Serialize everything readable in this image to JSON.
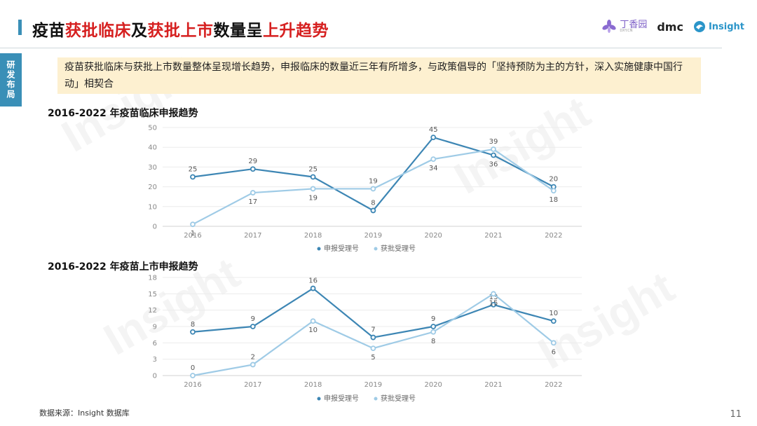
{
  "header": {
    "title_parts": [
      {
        "text": "疫苗",
        "highlight": false
      },
      {
        "text": "获批临床",
        "highlight": true
      },
      {
        "text": "及",
        "highlight": false
      },
      {
        "text": "获批上市",
        "highlight": true
      },
      {
        "text": "数量呈",
        "highlight": false
      },
      {
        "text": "上升趋势",
        "highlight": true
      }
    ],
    "logos": {
      "dxy": "丁香园",
      "dxy_sub": "DXY.CN",
      "dmc": "dmc",
      "insight": "Insight"
    }
  },
  "side_tab": "研发布局",
  "summary": "疫苗获批临床与获批上市数量整体呈现增长趋势，申报临床的数量近三年有所增多，与政策倡导的「坚持预防为主的方针，深入实施健康中国行动」相契合",
  "colors": {
    "accent": "#3a8fb7",
    "highlight": "#d62020",
    "series_dark": "#3d86b4",
    "series_light": "#9fcbe6",
    "summary_bg": "#fdf0d0"
  },
  "chart_data": [
    {
      "type": "line",
      "title": "2016-2022 年疫苗临床申报趋势",
      "x": [
        "2016",
        "2017",
        "2018",
        "2019",
        "2020",
        "2021",
        "2022"
      ],
      "ylim": [
        0,
        50
      ],
      "yticks": [
        0,
        10,
        20,
        30,
        40,
        50
      ],
      "grid": true,
      "legend": "bottom-center",
      "series": [
        {
          "name": "申报受理号",
          "values": [
            25,
            29,
            25,
            8,
            45,
            36,
            20
          ]
        },
        {
          "name": "获批受理号",
          "values": [
            1,
            17,
            19,
            19,
            34,
            39,
            18
          ]
        }
      ]
    },
    {
      "type": "line",
      "title": "2016-2022 年疫苗上市申报趋势",
      "x": [
        "2016",
        "2017",
        "2018",
        "2019",
        "2020",
        "2021",
        "2022"
      ],
      "ylim": [
        0,
        18
      ],
      "yticks": [
        0,
        3,
        6,
        9,
        12,
        15,
        18
      ],
      "grid": true,
      "legend": "bottom-center",
      "series": [
        {
          "name": "申报受理号",
          "values": [
            8,
            9,
            16,
            7,
            9,
            13,
            10
          ]
        },
        {
          "name": "获批受理号",
          "values": [
            0,
            2,
            10,
            5,
            8,
            15,
            6
          ]
        }
      ]
    }
  ],
  "footer": {
    "source": "数据来源：Insight 数据库",
    "page": "11"
  },
  "watermark": "Insight"
}
